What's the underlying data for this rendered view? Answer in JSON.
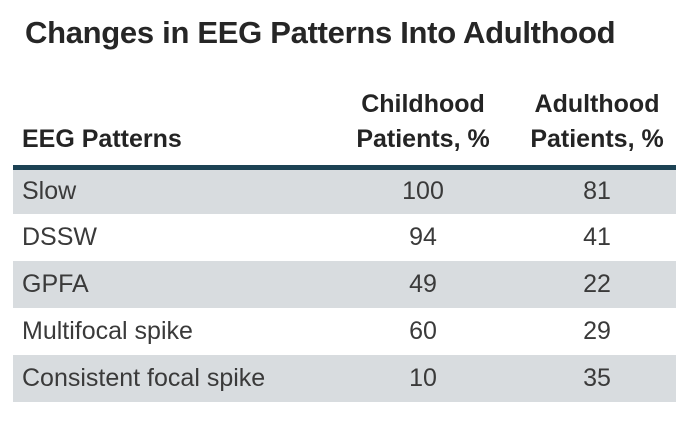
{
  "title": "Changes in EEG Patterns Into Adulthood",
  "colors": {
    "header_rule": "#1c4254",
    "shaded_row": "#d8dcdf",
    "title_text": "#262626",
    "body_text": "#3a3a3a",
    "background": "#ffffff"
  },
  "table": {
    "col1_header": "EEG Patterns",
    "col2_header_line1": "Childhood",
    "col2_header_line2": "Patients, %",
    "col3_header_line1": "Adulthood",
    "col3_header_line2": "Patients, %",
    "rows": [
      {
        "pattern": "Slow",
        "childhood": "100",
        "adulthood": "81"
      },
      {
        "pattern": "DSSW",
        "childhood": "94",
        "adulthood": "41"
      },
      {
        "pattern": "GPFA",
        "childhood": "49",
        "adulthood": "22"
      },
      {
        "pattern": "Multifocal spike",
        "childhood": "60",
        "adulthood": "29"
      },
      {
        "pattern": "Consistent focal spike",
        "childhood": "10",
        "adulthood": "35"
      }
    ]
  },
  "chart_data": {
    "type": "table",
    "title": "Changes in EEG Patterns Into Adulthood",
    "columns": [
      "EEG Patterns",
      "Childhood Patients, %",
      "Adulthood Patients, %"
    ],
    "rows": [
      [
        "Slow",
        100,
        81
      ],
      [
        "DSSW",
        94,
        41
      ],
      [
        "GPFA",
        49,
        22
      ],
      [
        "Multifocal spike",
        60,
        29
      ],
      [
        "Consistent focal spike",
        10,
        35
      ]
    ]
  }
}
